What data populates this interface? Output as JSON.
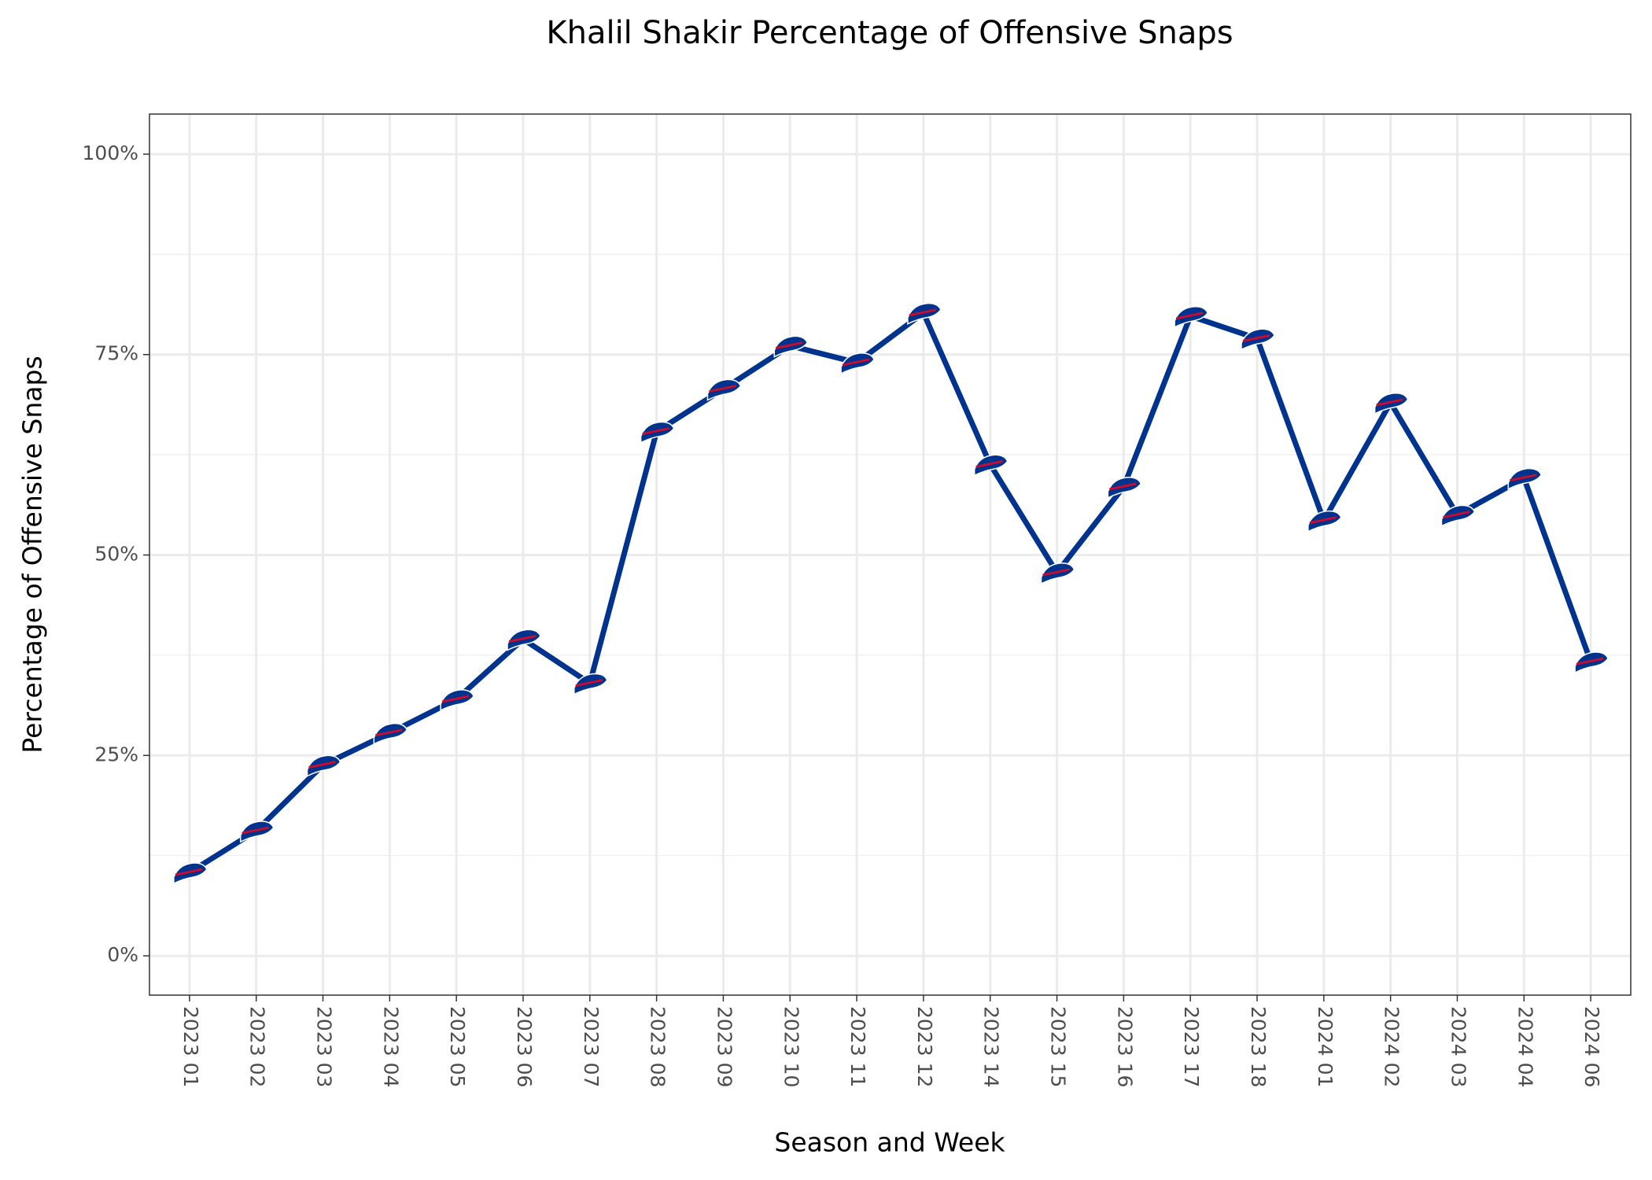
{
  "chart_data": {
    "type": "line",
    "title": "Khalil Shakir Percentage of Offensive Snaps",
    "x_label": "Season and Week",
    "y_label": "Percentage of Offensive Snaps",
    "categories": [
      "2023 01",
      "2023 02",
      "2023 03",
      "2023 04",
      "2023 05",
      "2023 06",
      "2023 07",
      "2023 08",
      "2023 09",
      "2023 10",
      "2023 11",
      "2023 12",
      "2023 14",
      "2023 15",
      "2023 16",
      "2023 17",
      "2023 18",
      "2024 01",
      "2024 02",
      "2024 03",
      "2024 04",
      "2024 06"
    ],
    "series": [
      {
        "name": "Khalil Shakir",
        "color": "#00338d",
        "values": [
          10.4,
          15.6,
          23.8,
          27.8,
          32.0,
          39.5,
          34.0,
          65.4,
          70.7,
          76.1,
          74.0,
          80.2,
          61.3,
          47.8,
          58.5,
          79.8,
          77.0,
          54.3,
          69.0,
          55.0,
          59.6,
          36.7
        ]
      }
    ],
    "ylim": [
      -4.9,
      105
    ],
    "yticks": [
      {
        "value": 0,
        "label": "0%"
      },
      {
        "value": 25,
        "label": "25%"
      },
      {
        "value": 50,
        "label": "50%"
      },
      {
        "value": 75,
        "label": "75%"
      },
      {
        "value": 100,
        "label": "100%"
      }
    ],
    "minor_yticks": [
      12.5,
      37.5,
      62.5,
      87.5
    ],
    "grid": true
  }
}
